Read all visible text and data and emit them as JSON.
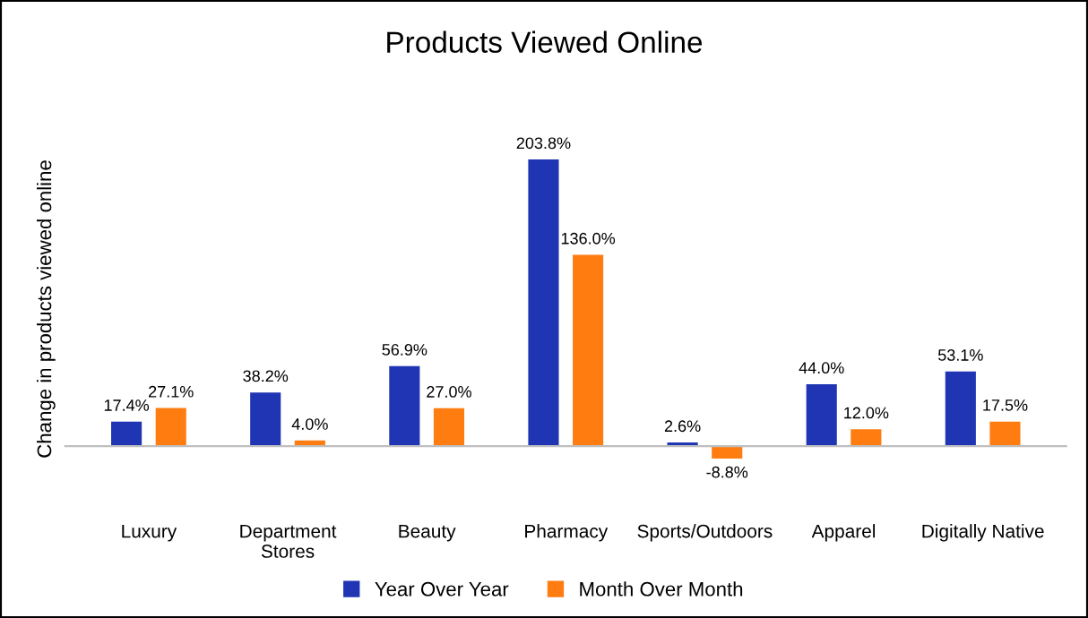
{
  "chart_data": {
    "type": "bar",
    "title": "Products Viewed Online",
    "ylabel": "Change in products viewed online",
    "categories": [
      "Luxury",
      "Department\nStores",
      "Beauty",
      "Pharmacy",
      "Sports/Outdoors",
      "Apparel",
      "Digitally Native"
    ],
    "series": [
      {
        "name": "Year Over Year",
        "color": "#1f35b4",
        "values": [
          17.4,
          38.2,
          56.9,
          203.8,
          2.6,
          44.0,
          53.1
        ],
        "value_labels": [
          "17.4%",
          "38.2%",
          "56.9%",
          "203.8%",
          "2.6%",
          "44.0%",
          "53.1%"
        ]
      },
      {
        "name": "Month Over Month",
        "color": "#ff7c10",
        "values": [
          27.1,
          4.0,
          27.0,
          136.0,
          -8.8,
          12.0,
          17.5
        ],
        "value_labels": [
          "27.1%",
          "4.0%",
          "27.0%",
          "136.0%",
          "-8.8%",
          "12.0%",
          "17.5%"
        ]
      }
    ],
    "legend": "bottom"
  }
}
